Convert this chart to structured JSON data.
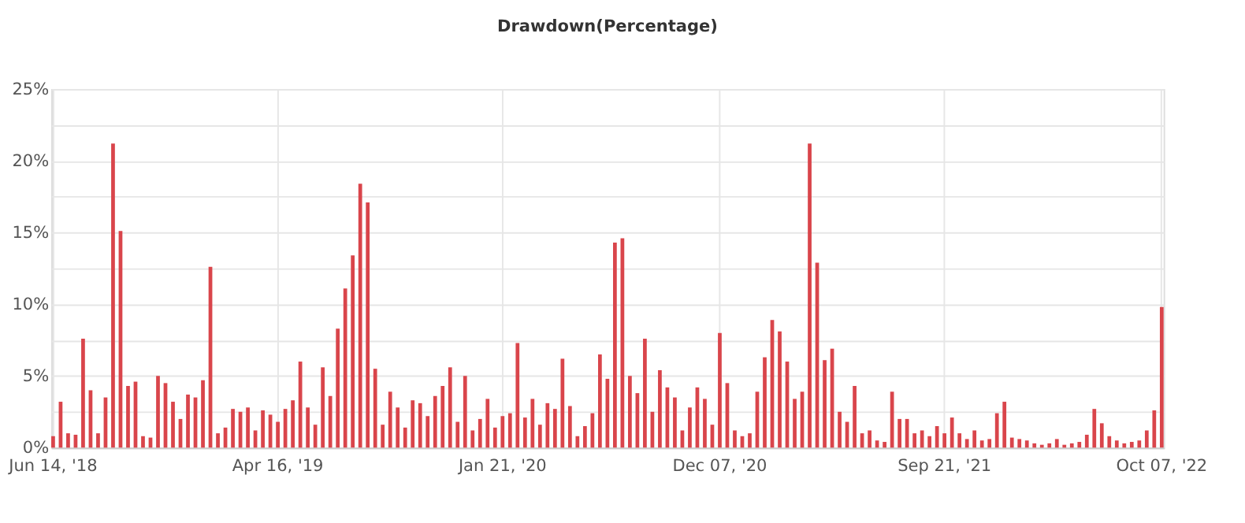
{
  "chart_data": {
    "type": "bar",
    "title": "Drawdown(Percentage)",
    "categories": [
      "Jun 14, '18",
      null,
      null,
      null,
      null,
      null,
      null,
      null,
      null,
      null,
      null,
      null,
      null,
      null,
      null,
      null,
      null,
      null,
      null,
      null,
      null,
      null,
      null,
      null,
      null,
      null,
      null,
      null,
      null,
      null,
      "Apr 16, '19",
      null,
      null,
      null,
      null,
      null,
      null,
      null,
      null,
      null,
      null,
      null,
      null,
      null,
      null,
      null,
      null,
      null,
      null,
      null,
      null,
      null,
      null,
      null,
      null,
      null,
      null,
      null,
      null,
      null,
      "Jan 21, '20",
      null,
      null,
      null,
      null,
      null,
      null,
      null,
      null,
      null,
      null,
      null,
      null,
      null,
      null,
      null,
      null,
      null,
      null,
      null,
      null,
      null,
      null,
      null,
      null,
      null,
      null,
      null,
      null,
      "Dec 07, '20",
      null,
      null,
      null,
      null,
      null,
      null,
      null,
      null,
      null,
      null,
      null,
      null,
      null,
      null,
      null,
      null,
      null,
      null,
      null,
      null,
      null,
      null,
      null,
      null,
      null,
      null,
      null,
      null,
      null,
      "Sep 21, '21",
      null,
      null,
      null,
      null,
      null,
      null,
      null,
      null,
      null,
      null,
      null,
      null,
      null,
      null,
      null,
      null,
      null,
      null,
      null,
      null,
      null,
      null,
      null,
      null,
      null,
      null,
      null,
      null,
      "Oct 07, '22"
    ],
    "values": [
      0.8,
      3.2,
      1.0,
      0.9,
      7.6,
      4.0,
      1.0,
      3.5,
      21.2,
      15.1,
      4.3,
      4.6,
      0.8,
      0.7,
      5.0,
      4.5,
      3.2,
      2.0,
      3.7,
      3.5,
      4.7,
      12.6,
      1.0,
      1.4,
      2.7,
      2.5,
      2.8,
      1.2,
      2.6,
      2.3,
      1.8,
      2.7,
      3.3,
      6.0,
      2.8,
      1.6,
      5.6,
      3.6,
      8.3,
      11.1,
      13.4,
      18.4,
      17.1,
      5.5,
      1.6,
      3.9,
      2.8,
      1.4,
      3.3,
      3.1,
      2.2,
      3.6,
      4.3,
      5.6,
      1.8,
      5.0,
      1.2,
      2.0,
      3.4,
      1.4,
      2.2,
      2.4,
      7.3,
      2.1,
      3.4,
      1.6,
      3.1,
      2.7,
      6.2,
      2.9,
      0.8,
      1.5,
      2.4,
      6.5,
      4.8,
      14.3,
      14.6,
      5.0,
      3.8,
      7.6,
      2.5,
      5.4,
      4.2,
      3.5,
      1.2,
      2.8,
      4.2,
      3.4,
      1.6,
      8.0,
      4.5,
      1.2,
      0.8,
      1.0,
      3.9,
      6.3,
      8.9,
      8.1,
      6.0,
      3.4,
      3.9,
      21.2,
      12.9,
      6.1,
      6.9,
      2.5,
      1.8,
      4.3,
      1.0,
      1.2,
      0.5,
      0.4,
      3.9,
      2.0,
      2.0,
      1.0,
      1.2,
      0.8,
      1.5,
      1.0,
      2.1,
      1.0,
      0.6,
      1.2,
      0.5,
      0.6,
      2.4,
      3.2,
      0.7,
      0.6,
      0.5,
      0.3,
      0.2,
      0.3,
      0.6,
      0.2,
      0.3,
      0.4,
      0.9,
      2.7,
      1.7,
      0.8,
      0.5,
      0.3,
      0.4,
      0.5,
      1.2,
      2.6,
      9.8
    ],
    "color": "#d9454b",
    "ylim": [
      0,
      25
    ],
    "yticks": [
      {
        "value": 0,
        "label": "0%"
      },
      {
        "value": 2.5,
        "label": null
      },
      {
        "value": 5,
        "label": "5%"
      },
      {
        "value": 7.5,
        "label": null
      },
      {
        "value": 10,
        "label": "10%"
      },
      {
        "value": 12.5,
        "label": null
      },
      {
        "value": 15,
        "label": "15%"
      },
      {
        "value": 17.5,
        "label": null
      },
      {
        "value": 20,
        "label": "20%"
      },
      {
        "value": 22.5,
        "label": null
      },
      {
        "value": 25,
        "label": "25%"
      }
    ],
    "grid": true
  }
}
